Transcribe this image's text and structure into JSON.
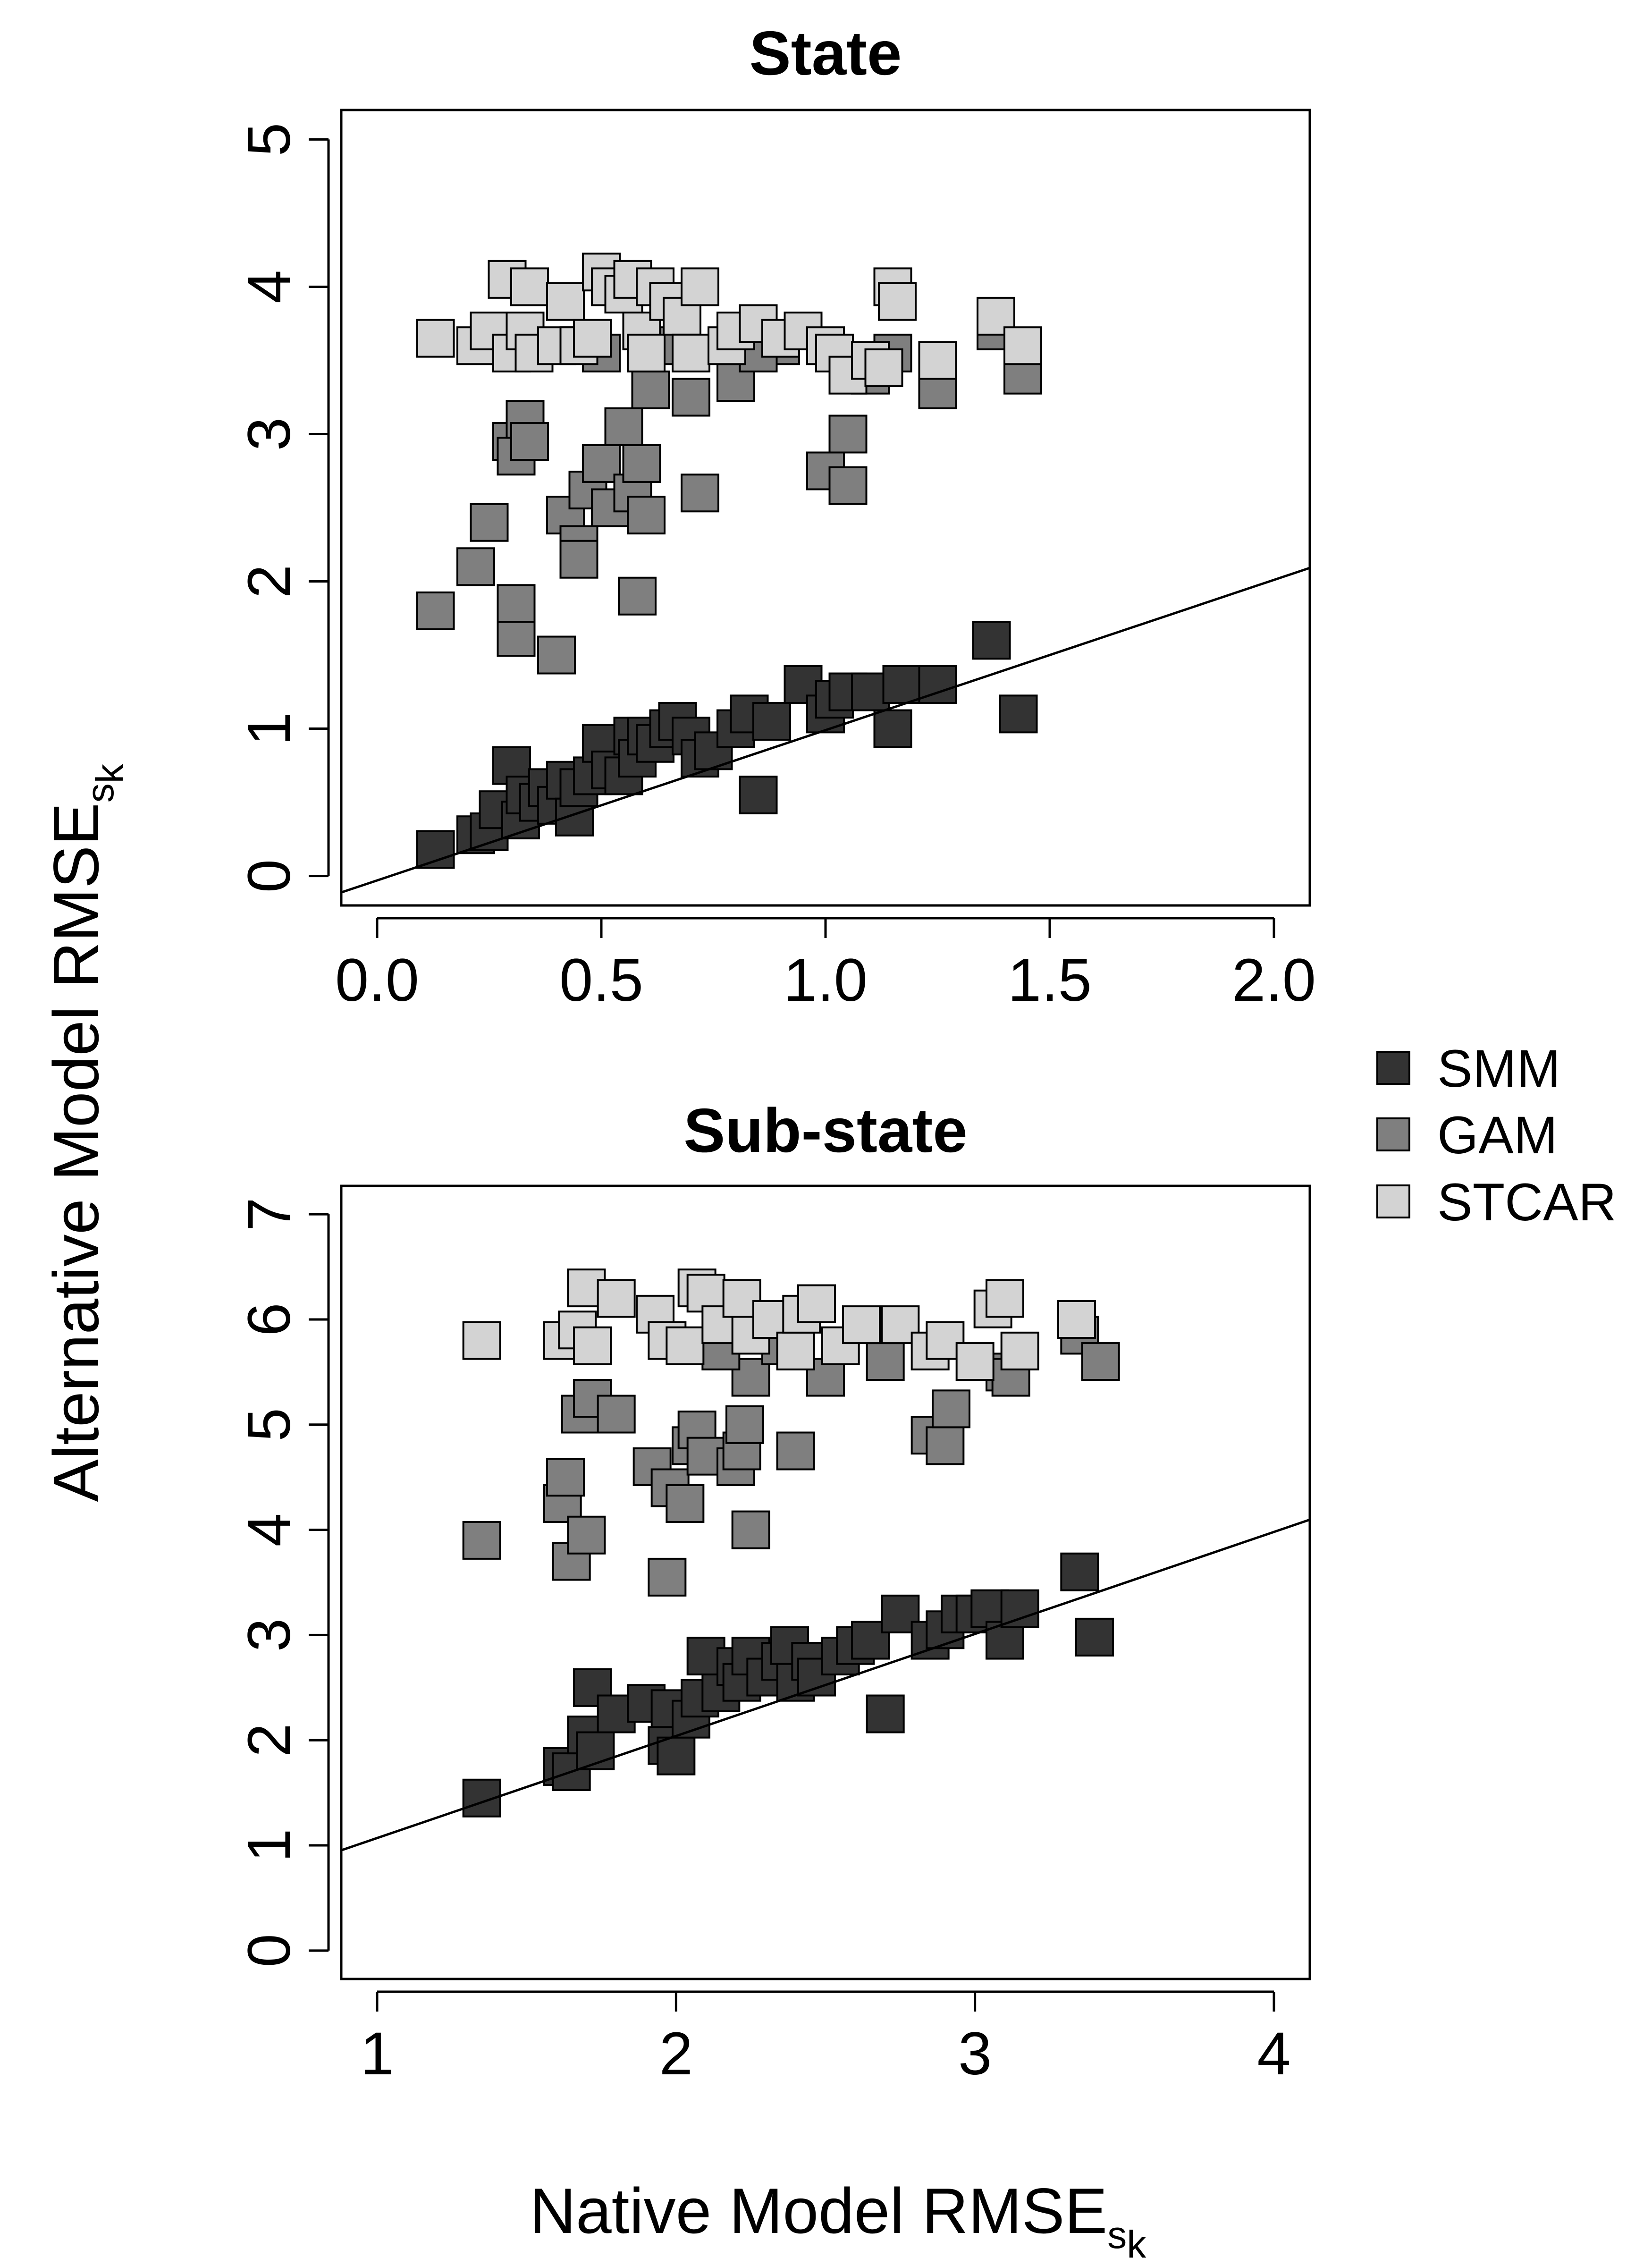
{
  "colors": {
    "SMM": "#333333",
    "GAM": "#7f7f7f",
    "STCAR": "#d3d3d3",
    "stroke": "#000000",
    "background": "#ffffff"
  },
  "labels": {
    "xlabel_main": "Native Model RMSE",
    "ylabel_main": "Alternative Model RMSE",
    "sub_s": "s",
    "sub_k": "k"
  },
  "legend": [
    "SMM",
    "GAM",
    "STCAR"
  ],
  "chart_data": [
    {
      "type": "scatter",
      "title": "State",
      "xlabel": "Native Model RMSE_{s_k}",
      "ylabel": "Alternative Model RMSE_{s_k}",
      "xlim": [
        -0.08,
        2.08
      ],
      "ylim": [
        -0.2,
        5.2
      ],
      "xticks": [
        "0.0",
        "0.5",
        "1.0",
        "1.5",
        "2.0"
      ],
      "xtick_values": [
        0,
        0.5,
        1.0,
        1.5,
        2.0
      ],
      "yticks": [
        "0",
        "1",
        "2",
        "3",
        "4",
        "5"
      ],
      "ytick_values": [
        0,
        1,
        2,
        3,
        4,
        5
      ],
      "line": {
        "intercept": -0.03,
        "slope": 1.02
      },
      "series": [
        {
          "name": "SMM",
          "points": [
            [
              0.13,
              0.18
            ],
            [
              0.22,
              0.28
            ],
            [
              0.25,
              0.3
            ],
            [
              0.27,
              0.45
            ],
            [
              0.3,
              0.75
            ],
            [
              0.32,
              0.38
            ],
            [
              0.33,
              0.55
            ],
            [
              0.36,
              0.5
            ],
            [
              0.38,
              0.6
            ],
            [
              0.4,
              0.48
            ],
            [
              0.42,
              0.65
            ],
            [
              0.44,
              0.4
            ],
            [
              0.45,
              0.6
            ],
            [
              0.48,
              0.68
            ],
            [
              0.5,
              0.9
            ],
            [
              0.52,
              0.72
            ],
            [
              0.55,
              0.68
            ],
            [
              0.57,
              0.95
            ],
            [
              0.58,
              0.8
            ],
            [
              0.6,
              0.95
            ],
            [
              0.62,
              0.9
            ],
            [
              0.65,
              1.0
            ],
            [
              0.67,
              1.05
            ],
            [
              0.7,
              0.95
            ],
            [
              0.72,
              0.8
            ],
            [
              0.75,
              0.85
            ],
            [
              0.8,
              1.0
            ],
            [
              0.83,
              1.1
            ],
            [
              0.85,
              0.55
            ],
            [
              0.88,
              1.05
            ],
            [
              0.95,
              1.3
            ],
            [
              1.0,
              1.1
            ],
            [
              1.02,
              1.2
            ],
            [
              1.05,
              1.25
            ],
            [
              1.1,
              1.25
            ],
            [
              1.15,
              1.0
            ],
            [
              1.17,
              1.3
            ],
            [
              1.25,
              1.3
            ],
            [
              1.37,
              1.6
            ],
            [
              1.43,
              1.1
            ]
          ]
        },
        {
          "name": "GAM",
          "points": [
            [
              0.13,
              1.8
            ],
            [
              0.22,
              2.1
            ],
            [
              0.25,
              2.4
            ],
            [
              0.3,
              2.95
            ],
            [
              0.31,
              1.62
            ],
            [
              0.31,
              2.85
            ],
            [
              0.31,
              1.85
            ],
            [
              0.33,
              3.1
            ],
            [
              0.34,
              2.95
            ],
            [
              0.4,
              1.5
            ],
            [
              0.42,
              2.45
            ],
            [
              0.45,
              2.25
            ],
            [
              0.45,
              2.15
            ],
            [
              0.47,
              2.62
            ],
            [
              0.5,
              2.8
            ],
            [
              0.52,
              2.5
            ],
            [
              0.55,
              3.05
            ],
            [
              0.57,
              2.6
            ],
            [
              0.58,
              1.9
            ],
            [
              0.59,
              2.8
            ],
            [
              0.6,
              2.45
            ],
            [
              0.61,
              3.3
            ],
            [
              0.7,
              3.25
            ],
            [
              0.72,
              2.6
            ],
            [
              0.8,
              3.35
            ],
            [
              0.9,
              3.6
            ],
            [
              1.0,
              2.75
            ],
            [
              1.05,
              2.65
            ],
            [
              1.05,
              3.0
            ],
            [
              1.15,
              3.55
            ],
            [
              1.25,
              3.3
            ],
            [
              1.38,
              3.7
            ],
            [
              1.44,
              3.4
            ],
            [
              0.5,
              3.55
            ],
            [
              0.65,
              3.6
            ],
            [
              0.85,
              3.55
            ],
            [
              1.1,
              3.4
            ]
          ]
        },
        {
          "name": "STCAR",
          "points": [
            [
              0.13,
              3.65
            ],
            [
              0.22,
              3.6
            ],
            [
              0.25,
              3.7
            ],
            [
              0.29,
              4.05
            ],
            [
              0.3,
              3.55
            ],
            [
              0.33,
              3.7
            ],
            [
              0.34,
              4.0
            ],
            [
              0.35,
              3.55
            ],
            [
              0.4,
              3.6
            ],
            [
              0.42,
              3.9
            ],
            [
              0.45,
              3.6
            ],
            [
              0.48,
              3.65
            ],
            [
              0.5,
              4.1
            ],
            [
              0.52,
              4.0
            ],
            [
              0.55,
              3.95
            ],
            [
              0.57,
              4.05
            ],
            [
              0.59,
              3.7
            ],
            [
              0.6,
              3.55
            ],
            [
              0.62,
              4.0
            ],
            [
              0.65,
              3.9
            ],
            [
              0.68,
              3.8
            ],
            [
              0.7,
              3.55
            ],
            [
              0.72,
              4.0
            ],
            [
              0.78,
              3.6
            ],
            [
              0.8,
              3.7
            ],
            [
              0.85,
              3.75
            ],
            [
              0.9,
              3.65
            ],
            [
              0.95,
              3.7
            ],
            [
              1.0,
              3.6
            ],
            [
              1.02,
              3.55
            ],
            [
              1.05,
              3.4
            ],
            [
              1.1,
              3.5
            ],
            [
              1.13,
              3.45
            ],
            [
              1.15,
              4.0
            ],
            [
              1.16,
              3.9
            ],
            [
              1.25,
              3.5
            ],
            [
              1.38,
              3.8
            ],
            [
              1.44,
              3.6
            ]
          ]
        }
      ]
    },
    {
      "type": "scatter",
      "title": "Sub-state",
      "xlabel": "Native Model RMSE_{s_k}",
      "ylabel": "Alternative Model RMSE_{s_k}",
      "xlim": [
        0.88,
        4.12
      ],
      "ylim": [
        -0.27,
        7.27
      ],
      "xticks": [
        "1",
        "2",
        "3",
        "4"
      ],
      "xtick_values": [
        1,
        2,
        3,
        4
      ],
      "yticks": [
        "0",
        "1",
        "2",
        "3",
        "4",
        "5",
        "6",
        "7"
      ],
      "ytick_values": [
        0,
        1,
        2,
        3,
        4,
        5,
        6,
        7
      ],
      "line": {
        "intercept": 0.1,
        "slope": 0.97
      },
      "series": [
        {
          "name": "SMM",
          "points": [
            [
              1.35,
              1.45
            ],
            [
              1.62,
              1.75
            ],
            [
              1.65,
              1.7
            ],
            [
              1.7,
              2.05
            ],
            [
              1.72,
              2.5
            ],
            [
              1.73,
              1.9
            ],
            [
              1.8,
              2.25
            ],
            [
              1.9,
              2.35
            ],
            [
              1.97,
              1.95
            ],
            [
              1.98,
              2.3
            ],
            [
              2.0,
              1.85
            ],
            [
              2.05,
              2.2
            ],
            [
              2.08,
              2.4
            ],
            [
              2.1,
              2.8
            ],
            [
              2.15,
              2.45
            ],
            [
              2.2,
              2.7
            ],
            [
              2.22,
              2.55
            ],
            [
              2.25,
              2.8
            ],
            [
              2.3,
              2.6
            ],
            [
              2.35,
              2.75
            ],
            [
              2.38,
              2.9
            ],
            [
              2.4,
              2.55
            ],
            [
              2.45,
              2.75
            ],
            [
              2.47,
              2.6
            ],
            [
              2.55,
              2.8
            ],
            [
              2.6,
              2.9
            ],
            [
              2.65,
              2.95
            ],
            [
              2.7,
              2.25
            ],
            [
              2.75,
              3.2
            ],
            [
              2.85,
              2.95
            ],
            [
              2.9,
              3.05
            ],
            [
              2.95,
              3.2
            ],
            [
              3.0,
              3.2
            ],
            [
              3.05,
              3.25
            ],
            [
              3.1,
              2.95
            ],
            [
              3.15,
              3.25
            ],
            [
              3.35,
              3.6
            ],
            [
              3.4,
              2.98
            ]
          ]
        },
        {
          "name": "GAM",
          "points": [
            [
              1.35,
              3.9
            ],
            [
              1.62,
              4.25
            ],
            [
              1.63,
              4.5
            ],
            [
              1.65,
              3.7
            ],
            [
              1.68,
              5.1
            ],
            [
              1.7,
              3.95
            ],
            [
              1.72,
              5.25
            ],
            [
              1.8,
              5.1
            ],
            [
              1.92,
              4.6
            ],
            [
              1.97,
              3.55
            ],
            [
              1.98,
              4.4
            ],
            [
              2.03,
              4.25
            ],
            [
              2.05,
              4.8
            ],
            [
              2.07,
              4.95
            ],
            [
              2.1,
              4.7
            ],
            [
              2.2,
              4.6
            ],
            [
              2.22,
              4.75
            ],
            [
              2.23,
              5.0
            ],
            [
              2.25,
              4.0
            ],
            [
              2.25,
              5.45
            ],
            [
              2.4,
              4.75
            ],
            [
              2.5,
              5.45
            ],
            [
              2.7,
              5.6
            ],
            [
              2.85,
              4.9
            ],
            [
              2.9,
              4.8
            ],
            [
              2.92,
              5.15
            ],
            [
              3.1,
              5.5
            ],
            [
              3.12,
              5.45
            ],
            [
              3.35,
              5.85
            ],
            [
              3.42,
              5.6
            ],
            [
              2.15,
              5.7
            ],
            [
              2.35,
              5.75
            ]
          ]
        },
        {
          "name": "STCAR",
          "points": [
            [
              1.35,
              5.8
            ],
            [
              1.62,
              5.8
            ],
            [
              1.67,
              5.9
            ],
            [
              1.7,
              6.3
            ],
            [
              1.72,
              5.75
            ],
            [
              1.8,
              6.2
            ],
            [
              1.93,
              6.05
            ],
            [
              1.97,
              5.8
            ],
            [
              2.03,
              5.75
            ],
            [
              2.07,
              6.3
            ],
            [
              2.1,
              6.25
            ],
            [
              2.15,
              5.95
            ],
            [
              2.22,
              6.2
            ],
            [
              2.25,
              5.85
            ],
            [
              2.32,
              6.0
            ],
            [
              2.4,
              5.7
            ],
            [
              2.42,
              6.05
            ],
            [
              2.47,
              6.15
            ],
            [
              2.55,
              5.75
            ],
            [
              2.62,
              5.95
            ],
            [
              2.75,
              5.95
            ],
            [
              2.85,
              5.7
            ],
            [
              2.9,
              5.8
            ],
            [
              3.0,
              5.6
            ],
            [
              3.06,
              6.1
            ],
            [
              3.1,
              6.2
            ],
            [
              3.15,
              5.7
            ],
            [
              3.34,
              6.0
            ]
          ]
        }
      ]
    }
  ]
}
